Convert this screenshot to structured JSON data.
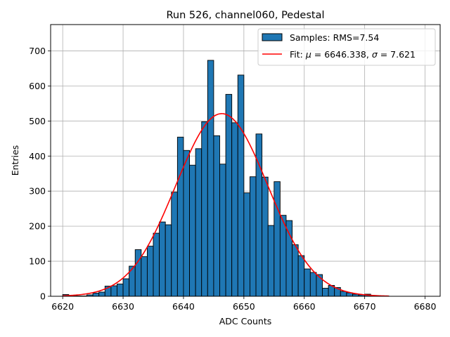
{
  "chart_data": {
    "type": "bar",
    "title": "Run 526, channel060, Pedestal",
    "xlabel": "ADC Counts",
    "ylabel": "Entries",
    "xlim": [
      6618,
      6682.5
    ],
    "ylim": [
      0,
      775
    ],
    "xticks": [
      6620,
      6630,
      6640,
      6650,
      6660,
      6670,
      6680
    ],
    "yticks": [
      0,
      100,
      200,
      300,
      400,
      500,
      600,
      700
    ],
    "grid": true,
    "legend_position": "upper right",
    "colors": {
      "bars": "#1f77b4",
      "bar_edge": "#000000",
      "fit": "#ff0000",
      "grid": "#b0b0b0"
    },
    "histogram": {
      "name": "Samples: RMS=7.54",
      "bin_start": 6620,
      "bin_width": 1,
      "counts": [
        5,
        2,
        1,
        1,
        4,
        9,
        12,
        29,
        30,
        35,
        50,
        86,
        133,
        113,
        143,
        180,
        212,
        204,
        297,
        454,
        416,
        374,
        421,
        498,
        673,
        458,
        377,
        576,
        495,
        631,
        295,
        341,
        463,
        340,
        202,
        327,
        231,
        216,
        147,
        116,
        78,
        68,
        62,
        23,
        31,
        25,
        14,
        10,
        6,
        4,
        6,
        2,
        1,
        1
      ]
    },
    "fit": {
      "name": "Fit: μ = 6646.338, σ = 7.621",
      "legend_prefix": "Fit: ",
      "legend_mu": "μ",
      "legend_sigma": "σ",
      "mu_value": " = 6646.338, ",
      "sigma_value": " = 7.621",
      "function": "gaussian",
      "mu": 6646.338,
      "sigma": 7.621,
      "amplitude": 521,
      "x_range": [
        6620,
        6674
      ]
    }
  }
}
